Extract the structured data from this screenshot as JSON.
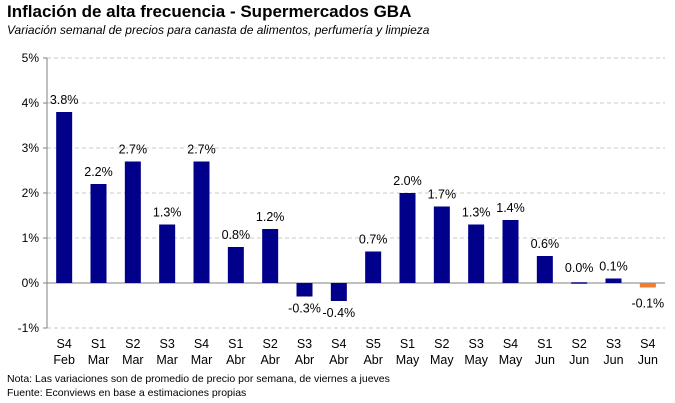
{
  "header": {
    "title": "Inflación de alta frecuencia - Supermercados GBA",
    "subtitle": "Variación semanal de precios para canasta de alimentos, perfumería y limpieza"
  },
  "footer": {
    "note": "Nota: Las variaciones son de promedio de precio por semana, de viernes a jueves",
    "source": "Fuente: Econviews en base a estimaciones propias"
  },
  "chart_data": {
    "type": "bar",
    "title": "Inflación de alta frecuencia - Supermercados GBA",
    "subtitle": "Variación semanal de precios para canasta de alimentos, perfumería y limpieza",
    "categories": [
      [
        "S4",
        "Feb"
      ],
      [
        "S1",
        "Mar"
      ],
      [
        "S2",
        "Mar"
      ],
      [
        "S3",
        "Mar"
      ],
      [
        "S4",
        "Mar"
      ],
      [
        "S1",
        "Abr"
      ],
      [
        "S2",
        "Abr"
      ],
      [
        "S3",
        "Abr"
      ],
      [
        "S4",
        "Abr"
      ],
      [
        "S5",
        "Abr"
      ],
      [
        "S1",
        "May"
      ],
      [
        "S2",
        "May"
      ],
      [
        "S3",
        "May"
      ],
      [
        "S4",
        "May"
      ],
      [
        "S1",
        "Jun"
      ],
      [
        "S2",
        "Jun"
      ],
      [
        "S3",
        "Jun"
      ],
      [
        "S4",
        "Jun"
      ]
    ],
    "values": [
      3.8,
      2.2,
      2.7,
      1.3,
      2.7,
      0.8,
      1.2,
      -0.3,
      -0.4,
      0.7,
      2.0,
      1.7,
      1.3,
      1.4,
      0.6,
      0.0,
      0.1,
      -0.1
    ],
    "data_labels": [
      "3.8%",
      "2.2%",
      "2.7%",
      "1.3%",
      "2.7%",
      "0.8%",
      "1.2%",
      "-0.3%",
      "-0.4%",
      "0.7%",
      "2.0%",
      "1.7%",
      "1.3%",
      "1.4%",
      "0.6%",
      "0.0%",
      "0.1%",
      "-0.1%"
    ],
    "yticks": [
      -1,
      0,
      1,
      2,
      3,
      4,
      5
    ],
    "ytick_labels": [
      "-1%",
      "0%",
      "1%",
      "2%",
      "3%",
      "4%",
      "5%"
    ],
    "ylim": [
      -1,
      5
    ],
    "grid": true,
    "colors": {
      "default": "#00008B",
      "highlight": "#ED7D31",
      "grid": "#C8C8C8",
      "axis": "#808080"
    },
    "highlight_index": 17
  }
}
